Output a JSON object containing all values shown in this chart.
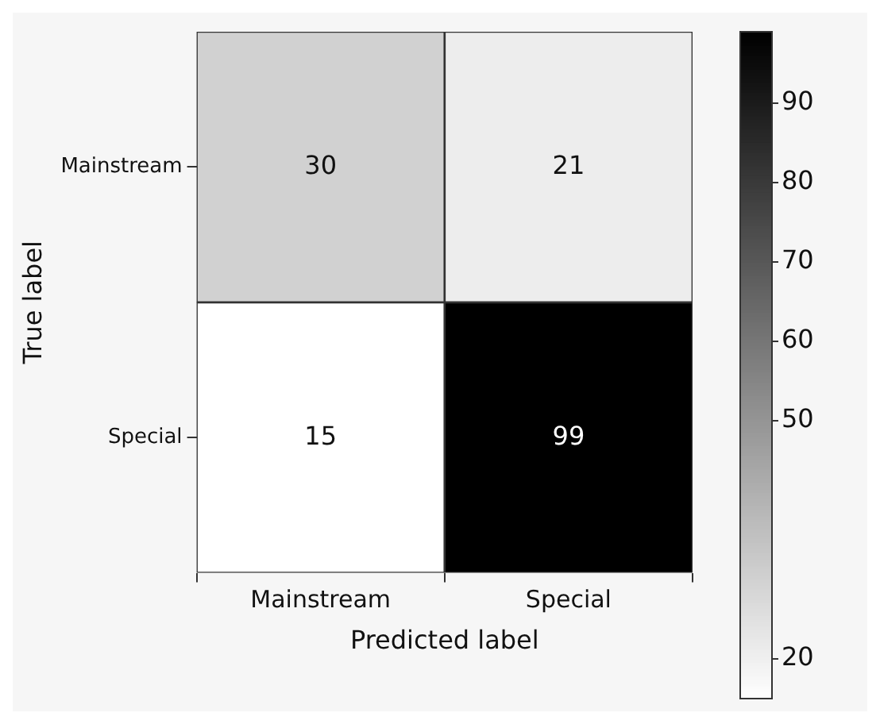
{
  "chart_data": {
    "type": "heatmap",
    "xlabel": "Predicted label",
    "ylabel": "True label",
    "categories": [
      "Mainstream",
      "Special"
    ],
    "y_categories": [
      "Mainstream",
      "Special"
    ],
    "cells": [
      [
        30,
        21
      ],
      [
        15,
        99
      ]
    ],
    "data_labels": true,
    "clim": [
      15,
      99
    ],
    "cticks": [
      20,
      50,
      60,
      70,
      80,
      90
    ]
  }
}
